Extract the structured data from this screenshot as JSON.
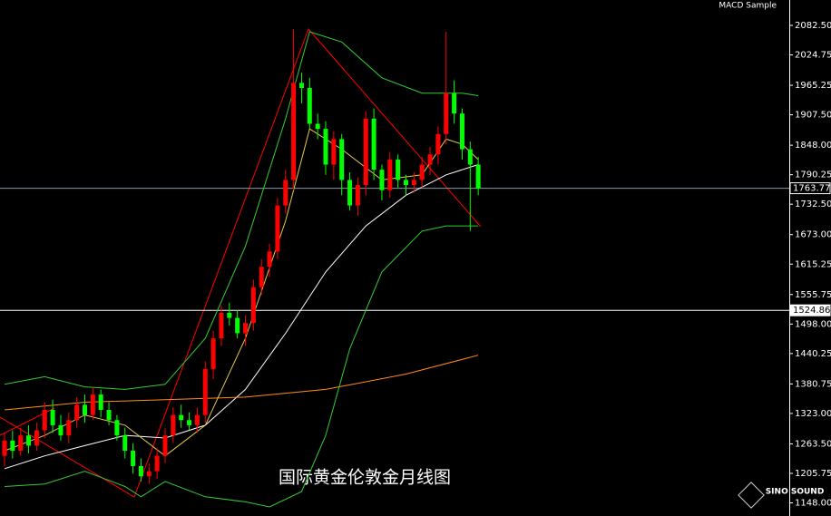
{
  "chart_data": {
    "type": "candlestick",
    "indicator_label": "MACD Sample",
    "caption": "国际黄金伦敦金月线图",
    "logo_text": "SINO SOUND",
    "up_color": "#ff0000",
    "down_color": "#00ff00",
    "ylim": [
      1122.3,
      2132.2
    ],
    "yticks": [
      {
        "value": 2082.5,
        "label": "2082.50"
      },
      2024.75,
      1965.25,
      {
        "value": 1907.5,
        "label": "1907.50"
      },
      {
        "value": 1848,
        "label": "1848.00"
      },
      1790.25,
      {
        "value": 1732.5,
        "label": "1732.50"
      },
      {
        "value": 1673,
        "label": "1673.00"
      },
      1615.25,
      1555.75,
      {
        "value": 1498,
        "label": "1498.00"
      },
      1440.25,
      1380.75,
      {
        "value": 1323,
        "label": "1323.00"
      },
      {
        "value": 1263.5,
        "label": "1263.50"
      },
      1205.75,
      {
        "value": 1148,
        "label": "1148.00"
      }
    ],
    "price_lines": [
      1763.77,
      1524.86
    ],
    "open": [
      1240,
      1270,
      1250,
      1280,
      1260,
      1290,
      1330,
      1300,
      1280,
      1310,
      1340,
      1320,
      1360,
      1330,
      1310,
      1280,
      1250,
      1220,
      1200,
      1210,
      1240,
      1280,
      1320,
      1310,
      1300,
      1320,
      1410,
      1470,
      1520,
      1510,
      1480,
      1500,
      1570,
      1610,
      1640,
      1730,
      1780,
      1970,
      1960,
      1890,
      1880,
      1810,
      1860,
      1780,
      1730,
      1770,
      1900,
      1800,
      1760,
      1820,
      1780,
      1770,
      1780,
      1810,
      1830,
      1870,
      1950,
      1910,
      1840,
      1810
    ],
    "high": [
      1285,
      1290,
      1295,
      1300,
      1305,
      1345,
      1350,
      1320,
      1325,
      1355,
      1360,
      1375,
      1370,
      1345,
      1320,
      1295,
      1265,
      1235,
      1225,
      1255,
      1295,
      1335,
      1340,
      1325,
      1335,
      1425,
      1485,
      1535,
      1540,
      1525,
      1515,
      1585,
      1625,
      1655,
      1745,
      1800,
      2075,
      1990,
      1980,
      1910,
      1895,
      1875,
      1870,
      1795,
      1785,
      1915,
      1920,
      1810,
      1835,
      1830,
      1790,
      1795,
      1825,
      1845,
      1885,
      2070,
      1975,
      1920,
      1855,
      1825
    ],
    "low": [
      1220,
      1235,
      1240,
      1245,
      1250,
      1275,
      1285,
      1270,
      1265,
      1295,
      1305,
      1310,
      1315,
      1300,
      1270,
      1235,
      1205,
      1190,
      1185,
      1195,
      1225,
      1265,
      1295,
      1290,
      1285,
      1305,
      1390,
      1455,
      1495,
      1470,
      1455,
      1485,
      1555,
      1590,
      1625,
      1715,
      1760,
      1930,
      1880,
      1860,
      1790,
      1780,
      1750,
      1720,
      1710,
      1750,
      1780,
      1740,
      1745,
      1765,
      1750,
      1755,
      1765,
      1790,
      1810,
      1850,
      1890,
      1820,
      1680,
      1750
    ],
    "close": [
      1270,
      1250,
      1280,
      1260,
      1290,
      1330,
      1300,
      1280,
      1310,
      1340,
      1320,
      1360,
      1330,
      1310,
      1280,
      1250,
      1220,
      1200,
      1210,
      1240,
      1280,
      1320,
      1310,
      1300,
      1320,
      1410,
      1470,
      1520,
      1510,
      1480,
      1500,
      1570,
      1610,
      1640,
      1730,
      1780,
      1970,
      1960,
      1890,
      1880,
      1810,
      1860,
      1780,
      1730,
      1770,
      1900,
      1800,
      1760,
      1820,
      1780,
      1770,
      1780,
      1810,
      1830,
      1870,
      1950,
      1910,
      1840,
      1810,
      1763
    ],
    "lines": [
      {
        "color": "#ffffff",
        "x": [
          0,
          5,
          10,
          15,
          20,
          25,
          30,
          35,
          40,
          45,
          50,
          55,
          59
        ],
        "values": [
          1215,
          1240,
          1260,
          1280,
          1275,
          1300,
          1370,
          1480,
          1600,
          1690,
          1750,
          1790,
          1810
        ]
      },
      {
        "color": "#ff8c1a",
        "x": [
          0,
          10,
          20,
          30,
          40,
          50,
          59
        ],
        "values": [
          1330,
          1345,
          1350,
          1355,
          1370,
          1400,
          1437
        ]
      },
      {
        "color": "#33cc33",
        "x": [
          0,
          5,
          10,
          15,
          20,
          25,
          30,
          35,
          38,
          42,
          47,
          52,
          57,
          59
        ],
        "values": [
          1380,
          1395,
          1375,
          1370,
          1380,
          1470,
          1650,
          1900,
          2070,
          2050,
          1980,
          1950,
          1950,
          1945
        ]
      },
      {
        "color": "#33cc33",
        "x": [
          0,
          5,
          10,
          15,
          17,
          20,
          25,
          30,
          33,
          37,
          40,
          43,
          47,
          52,
          55,
          59
        ],
        "values": [
          1180,
          1185,
          1210,
          1180,
          1160,
          1190,
          1160,
          1150,
          1140,
          1170,
          1280,
          1450,
          1600,
          1680,
          1690,
          1690
        ]
      },
      {
        "color": "#e6c84a",
        "x": [
          0,
          5,
          10,
          15,
          20,
          25,
          30,
          35,
          38,
          42,
          47,
          52,
          55,
          57,
          59
        ],
        "values": [
          1250,
          1280,
          1320,
          1300,
          1240,
          1300,
          1470,
          1700,
          1880,
          1840,
          1780,
          1790,
          1860,
          1850,
          1820
        ]
      }
    ]
  }
}
